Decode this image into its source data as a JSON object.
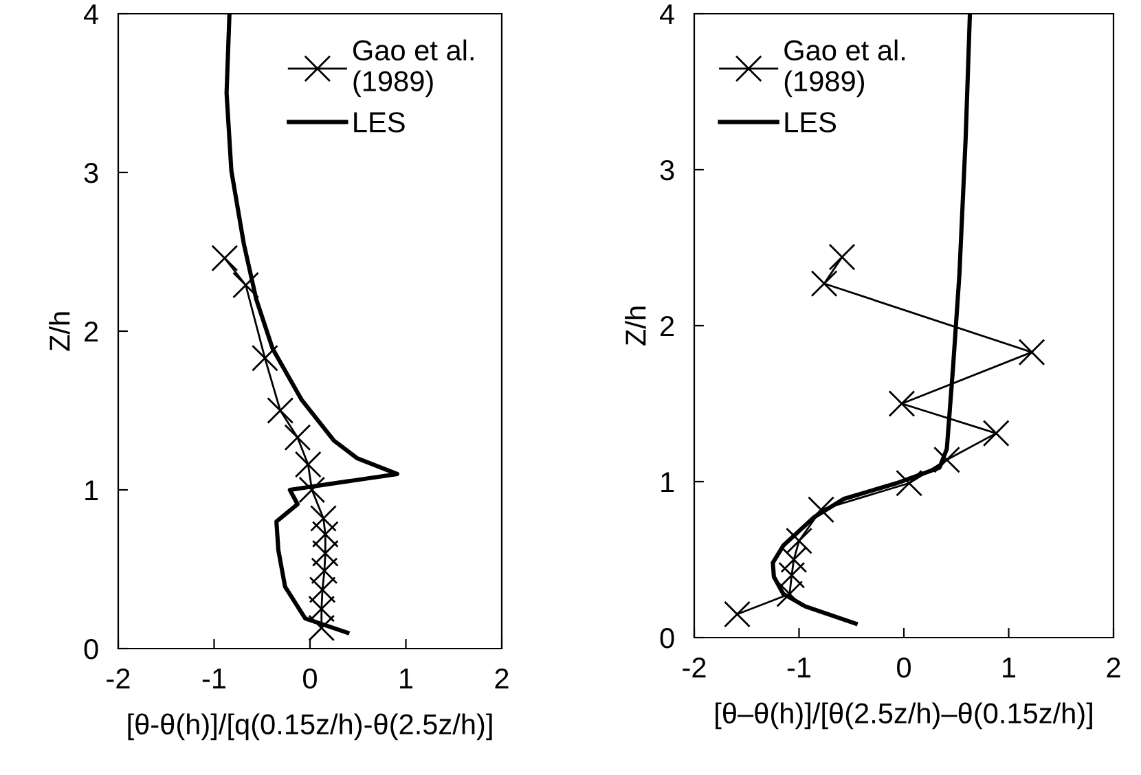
{
  "chart_data": [
    {
      "type": "line",
      "xlabel": "[θ-θ(h)]/[q(0.15z/h)-θ(2.5z/h)]",
      "ylabel": "Z/h",
      "xlim": [
        -2,
        2
      ],
      "xticks": [
        -2,
        -1,
        0,
        1,
        2
      ],
      "ylim": [
        0,
        4
      ],
      "yticks": [
        0,
        1,
        2,
        3,
        4
      ],
      "grid": false,
      "legend": "top right",
      "series": [
        {
          "name": "Gao et al.\n(1989)",
          "color": "#000000",
          "marker": "cross",
          "x": [
            -0.89,
            -0.67,
            -0.47,
            -0.31,
            -0.13,
            -0.02,
            0.02,
            0.14,
            0.16,
            0.16,
            0.15,
            0.13,
            0.12,
            0.12
          ],
          "values": [
            2.46,
            2.29,
            1.83,
            1.5,
            1.33,
            1.16,
            1.0,
            0.82,
            0.72,
            0.6,
            0.49,
            0.37,
            0.25,
            0.13
          ]
        },
        {
          "name": "LES",
          "color": "#000000",
          "marker": "none",
          "x": [
            -0.84,
            -0.87,
            -0.82,
            -0.69,
            -0.56,
            -0.39,
            -0.09,
            0.25,
            0.49,
            0.91,
            -0.21,
            -0.13,
            -0.35,
            -0.33,
            -0.26,
            -0.05,
            0.39
          ],
          "values": [
            4.0,
            3.5,
            3.01,
            2.55,
            2.2,
            1.89,
            1.57,
            1.31,
            1.2,
            1.1,
            1.0,
            0.91,
            0.8,
            0.62,
            0.39,
            0.19,
            0.1
          ]
        }
      ]
    },
    {
      "type": "line",
      "xlabel": "[θ–θ(h)]/[θ(2.5z/h)–θ(0.15z/h)]",
      "ylabel": "Z/h",
      "xlim": [
        -2,
        2
      ],
      "xticks": [
        -2,
        -1,
        0,
        1,
        2
      ],
      "ylim": [
        0,
        4
      ],
      "yticks": [
        0,
        1,
        2,
        3,
        4
      ],
      "grid": false,
      "legend": "top left",
      "series": [
        {
          "name": "Gao et al.\n(1989)",
          "color": "#000000",
          "marker": "cross",
          "x": [
            -0.59,
            -0.76,
            1.22,
            -0.02,
            0.88,
            0.41,
            0.05,
            -0.79,
            -1.0,
            -1.05,
            -1.07,
            -1.09,
            -1.59
          ],
          "values": [
            2.44,
            2.27,
            1.83,
            1.5,
            1.31,
            1.14,
            0.99,
            0.82,
            0.62,
            0.5,
            0.4,
            0.28,
            0.15
          ]
        },
        {
          "name": "LES",
          "color": "#000000",
          "marker": "none",
          "x": [
            0.63,
            0.59,
            0.53,
            0.47,
            0.41,
            0.34,
            -0.07,
            -0.57,
            -0.86,
            -1.15,
            -1.25,
            -1.24,
            -1.15,
            -0.94,
            -0.46
          ],
          "values": [
            4.0,
            3.21,
            2.33,
            1.74,
            1.21,
            1.09,
            0.99,
            0.89,
            0.77,
            0.59,
            0.48,
            0.39,
            0.28,
            0.2,
            0.09
          ]
        }
      ]
    }
  ]
}
